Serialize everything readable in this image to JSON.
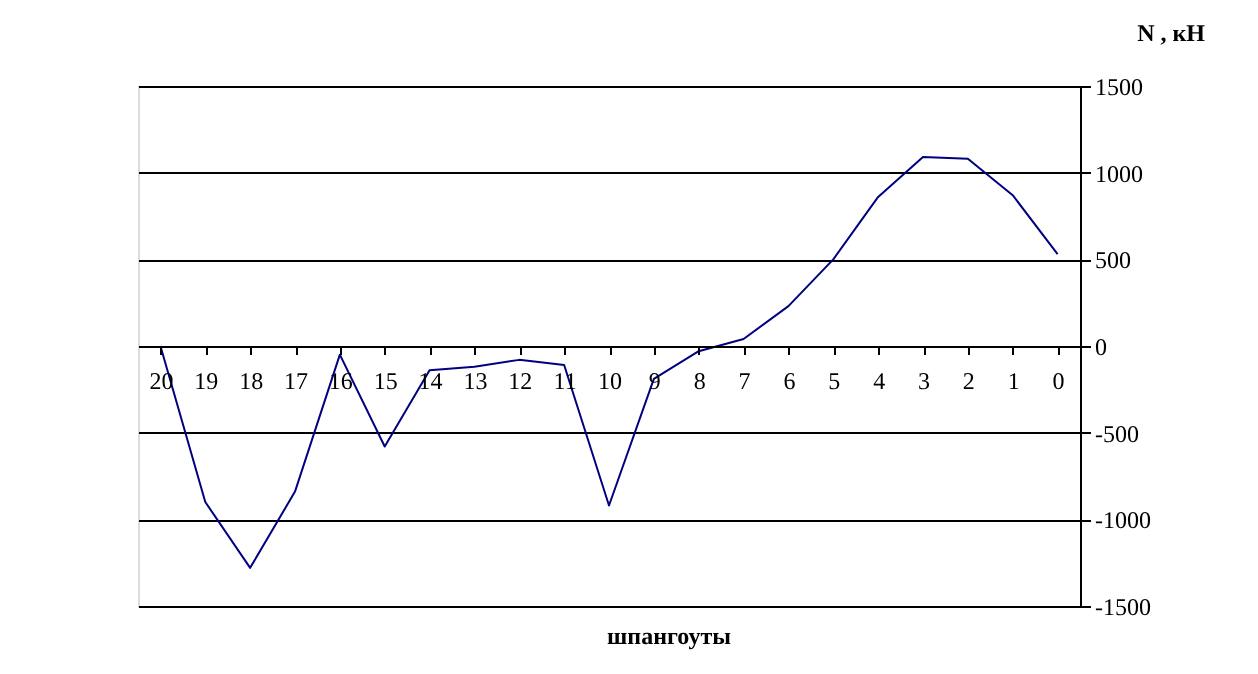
{
  "chart_data": {
    "type": "line",
    "xlabel": "шпангоуты",
    "ylabel": "N , кН",
    "categories": [
      "20",
      "19",
      "18",
      "17",
      "16",
      "15",
      "14",
      "13",
      "12",
      "11",
      "10",
      "9",
      "8",
      "7",
      "6",
      "5",
      "4",
      "3",
      "2",
      "1",
      "0"
    ],
    "series": [
      {
        "color": "#000080",
        "values": [
          0,
          -900,
          -1280,
          -840,
          -50,
          -580,
          -140,
          -120,
          -80,
          -110,
          -920,
          -190,
          -30,
          40,
          230,
          500,
          860,
          1090,
          1080,
          870,
          530
        ]
      }
    ],
    "ylim": [
      -1500,
      1500
    ],
    "yticks": [
      -1500,
      -1000,
      -500,
      0,
      500,
      1000,
      1500
    ],
    "grid": "y",
    "marker": "none",
    "line_style": "solid"
  }
}
